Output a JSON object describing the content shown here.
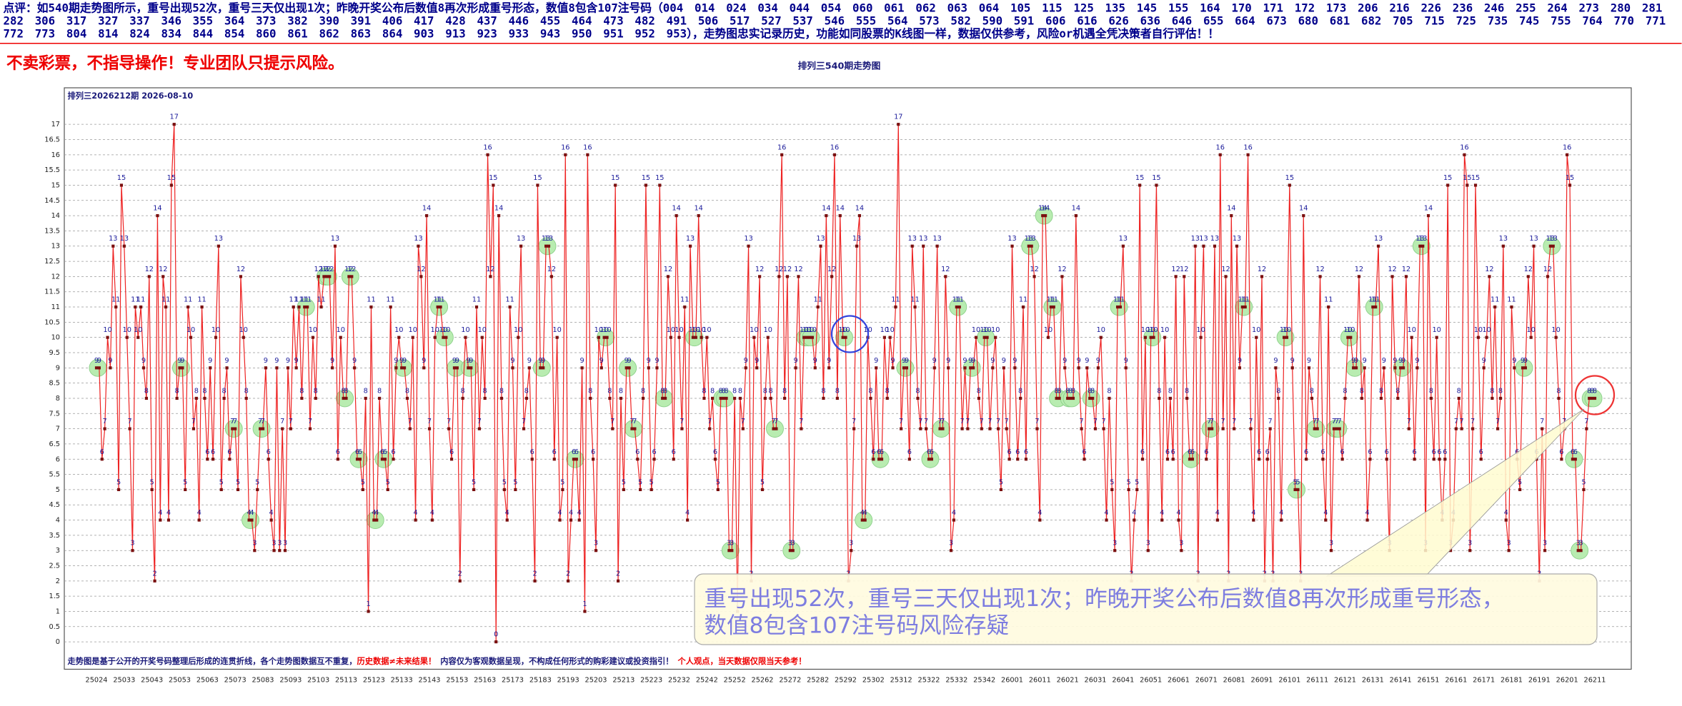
{
  "header": {
    "comment": "点评：如540期走势图所示，重号出现52次，重号三天仅出现1次；昨晚开奖公布后数值8再次形成重号形态，数值8包含107注号码（004　014　024　034　044　054　060　061　062　063　064　105　115　125　135　145　155　164　170　171　172　173　206　216　226　236　246　255　264　273　280　281　282　306　317　327　337　346　355　364　373　382　390　391　406　417　428　437　446　455　464　473　482　491　506　517　527　537　546　555　564　573　582　590　591　606　616　626　636　646　655　664　673　680　681　682　705　715　725　735　745　755　764　770　771　772　773　804　814　824　834　844　854　860　861　862　863　864　903　913　923　933　943　950　951　952　953），走势图忠实记录历史，功能如同股票的K线图一样，数据仅供参考，风险or机遇全凭决策者自行评估！！",
    "warning": "不卖彩票，不指导操作！专业团队只提示风险。"
  },
  "chart_data": {
    "type": "line",
    "title": "排列三540期走势图",
    "subtitle": "排列三2026212期  2026-08-10",
    "annotation": [
      "重号出现52次，重号三天仅出现1次；昨晚开奖公布后数值8再次形成重号形态，",
      "数值8包含107注号码风险存疑"
    ],
    "note": [
      "走势图是基于公开的开奖号码整理后形成的连贯折线，各个走势图数据互不重复，",
      "历史数据≠未来结果！",
      "内容仅为客观数据呈现，不构成任何形式的购彩建议或投资指引！",
      "个人观点，当天数据仅限当天参考！"
    ],
    "line_color": "#ee2222",
    "marker_color": "#7a1010",
    "repeat_color": "#b8ecb0",
    "label_color": "#1a1a9a",
    "grid": true,
    "ylim": [
      -0.9,
      18.2
    ],
    "yticks": [
      0,
      0.5,
      1,
      1.5,
      2,
      2.5,
      3,
      3.5,
      4,
      4.5,
      5,
      5.5,
      6,
      6.5,
      7,
      7.5,
      8,
      8.5,
      9,
      9.5,
      10,
      10.5,
      11,
      11.5,
      12,
      12.5,
      13,
      13.5,
      14,
      14.5,
      15,
      15.5,
      16,
      16.5,
      17
    ],
    "categories": [
      "25024",
      null,
      null,
      null,
      null,
      null,
      null,
      null,
      null,
      null,
      "25033",
      null,
      null,
      null,
      null,
      null,
      null,
      null,
      null,
      null,
      "25043",
      null,
      null,
      null,
      null,
      null,
      null,
      null,
      null,
      null,
      "25053",
      null,
      null,
      null,
      null,
      null,
      null,
      null,
      null,
      null,
      "25063",
      null,
      null,
      null,
      null,
      null,
      null,
      null,
      null,
      null,
      "25073",
      null,
      null,
      null,
      null,
      null,
      null,
      null,
      null,
      null,
      "25083",
      null,
      null,
      null,
      null,
      null,
      null,
      null,
      null,
      null,
      "25093",
      null,
      null,
      null,
      null,
      null,
      null,
      null,
      null,
      null,
      "25103",
      null,
      null,
      null,
      null,
      null,
      null,
      null,
      null,
      null,
      "25113",
      null,
      null,
      null,
      null,
      null,
      null,
      null,
      null,
      null,
      "25123",
      null,
      null,
      null,
      null,
      null,
      null,
      null,
      null,
      null,
      "25133",
      null,
      null,
      null,
      null,
      null,
      null,
      null,
      null,
      null,
      "25143",
      null,
      null,
      null,
      null,
      null,
      null,
      null,
      null,
      null,
      "25153",
      null,
      null,
      null,
      null,
      null,
      null,
      null,
      null,
      null,
      "25163",
      null,
      null,
      null,
      null,
      null,
      null,
      null,
      null,
      null,
      "25173",
      null,
      null,
      null,
      null,
      null,
      null,
      null,
      null,
      null,
      "25183",
      null,
      null,
      null,
      null,
      null,
      null,
      null,
      null,
      null,
      "25193",
      null,
      null,
      null,
      null,
      null,
      null,
      null,
      null,
      null,
      "25203",
      null,
      null,
      null,
      null,
      null,
      null,
      null,
      null,
      null,
      "25213",
      null,
      null,
      null,
      null,
      null,
      null,
      null,
      null,
      null,
      "25223",
      null,
      null,
      null,
      null,
      null,
      null,
      null,
      null,
      null,
      "25232",
      null,
      null,
      null,
      null,
      null,
      null,
      null,
      null,
      null,
      "25242",
      null,
      null,
      null,
      null,
      null,
      null,
      null,
      null,
      null,
      "25252",
      null,
      null,
      null,
      null,
      null,
      null,
      null,
      null,
      null,
      "25262",
      null,
      null,
      null,
      null,
      null,
      null,
      null,
      null,
      null,
      "25272",
      null,
      null,
      null,
      null,
      null,
      null,
      null,
      null,
      null,
      "25282",
      null,
      null,
      null,
      null,
      null,
      null,
      null,
      null,
      null,
      "25292",
      null,
      null,
      null,
      null,
      null,
      null,
      null,
      null,
      null,
      "25302",
      null,
      null,
      null,
      null,
      null,
      null,
      null,
      null,
      null,
      "25312",
      null,
      null,
      null,
      null,
      null,
      null,
      null,
      null,
      null,
      "25322",
      null,
      null,
      null,
      null,
      null,
      null,
      null,
      null,
      null,
      "25332",
      null,
      null,
      null,
      null,
      null,
      null,
      null,
      null,
      null,
      "25342",
      null,
      null,
      null,
      null,
      null,
      null,
      null,
      null,
      null,
      "26001",
      null,
      null,
      null,
      null,
      null,
      null,
      null,
      null,
      null,
      "26011",
      null,
      null,
      null,
      null,
      null,
      null,
      null,
      null,
      null,
      "26021",
      null,
      null,
      null,
      null,
      null,
      null,
      null,
      null,
      null,
      "26031",
      null,
      null,
      null,
      null,
      null,
      null,
      null,
      null,
      null,
      "26041",
      null,
      null,
      null,
      null,
      null,
      null,
      null,
      null,
      null,
      "26051",
      null,
      null,
      null,
      null,
      null,
      null,
      null,
      null,
      null,
      "26061",
      null,
      null,
      null,
      null,
      null,
      null,
      null,
      null,
      null,
      "26071",
      null,
      null,
      null,
      null,
      null,
      null,
      null,
      null,
      null,
      "26081",
      null,
      null,
      null,
      null,
      null,
      null,
      null,
      null,
      null,
      "26091",
      null,
      null,
      null,
      null,
      null,
      null,
      null,
      null,
      null,
      "26101",
      null,
      null,
      null,
      null,
      null,
      null,
      null,
      null,
      null,
      "26111",
      null,
      null,
      null,
      null,
      null,
      null,
      null,
      null,
      null,
      "26121",
      null,
      null,
      null,
      null,
      null,
      null,
      null,
      null,
      null,
      "26131",
      null,
      null,
      null,
      null,
      null,
      null,
      null,
      null,
      null,
      "26141",
      null,
      null,
      null,
      null,
      null,
      null,
      null,
      null,
      null,
      "26151",
      null,
      null,
      null,
      null,
      null,
      null,
      null,
      null,
      null,
      "26161",
      null,
      null,
      null,
      null,
      null,
      null,
      null,
      null,
      null,
      "26171",
      null,
      null,
      null,
      null,
      null,
      null,
      null,
      null,
      null,
      "26181",
      null,
      null,
      null,
      null,
      null,
      null,
      null,
      null,
      null,
      "26191",
      null,
      null,
      null,
      null,
      null,
      null,
      null,
      null,
      null,
      "26201",
      null,
      null,
      null,
      null,
      null,
      null,
      null,
      null,
      null,
      "26211"
    ],
    "values": [
      9,
      9,
      6,
      7,
      10,
      9,
      13,
      11,
      5,
      15,
      13,
      10,
      7,
      3,
      11,
      10,
      11,
      9,
      8,
      12,
      5,
      2,
      14,
      4,
      12,
      11,
      4,
      15,
      17,
      8,
      9,
      9,
      5,
      11,
      10,
      7,
      8,
      4,
      11,
      8,
      6,
      9,
      6,
      10,
      13,
      5,
      8,
      9,
      6,
      7,
      7,
      5,
      12,
      10,
      8,
      4,
      4,
      3,
      5,
      7,
      7,
      9,
      6,
      4,
      3,
      9,
      3,
      7,
      3,
      9,
      7,
      11,
      9,
      11,
      8,
      11,
      11,
      7,
      10,
      8,
      12,
      11,
      12,
      12,
      12,
      9,
      13,
      6,
      10,
      8,
      8,
      12,
      12,
      9,
      6,
      6,
      5,
      8,
      1,
      11,
      4,
      4,
      8,
      6,
      6,
      5,
      11,
      6,
      9,
      10,
      9,
      9,
      8,
      7,
      10,
      4,
      13,
      12,
      9,
      14,
      7,
      4,
      10,
      11,
      11,
      10,
      10,
      7,
      6,
      9,
      9,
      2,
      8,
      10,
      9,
      9,
      5,
      11,
      7,
      10,
      8,
      16,
      12,
      15,
      0,
      14,
      8,
      5,
      4,
      11,
      9,
      5,
      10,
      13,
      7,
      8,
      9,
      6,
      2,
      15,
      9,
      9,
      13,
      13,
      12,
      6,
      10,
      4,
      5,
      16,
      2,
      4,
      6,
      6,
      4,
      9,
      1,
      16,
      8,
      6,
      3,
      10,
      9,
      10,
      10,
      8,
      7,
      15,
      2,
      8,
      5,
      9,
      9,
      7,
      7,
      6,
      5,
      8,
      15,
      9,
      5,
      6,
      9,
      15,
      8,
      8,
      12,
      10,
      6,
      14,
      10,
      7,
      11,
      4,
      13,
      10,
      10,
      14,
      10,
      8,
      10,
      7,
      8,
      6,
      5,
      8,
      8,
      8,
      3,
      3,
      8,
      1,
      8,
      7,
      9,
      13,
      2,
      10,
      9,
      12,
      5,
      8,
      10,
      8,
      7,
      7,
      12,
      16,
      8,
      12,
      3,
      3,
      9,
      12,
      7,
      10,
      10,
      10,
      10,
      9,
      11,
      13,
      8,
      14,
      9,
      12,
      16,
      8,
      14,
      10,
      10,
      2,
      3,
      7,
      13,
      14,
      4,
      4,
      10,
      8,
      6,
      9,
      6,
      6,
      10,
      8,
      10,
      9,
      11,
      17,
      7,
      9,
      9,
      6,
      13,
      11,
      8,
      7,
      13,
      7,
      6,
      6,
      9,
      13,
      7,
      7,
      12,
      9,
      3,
      4,
      11,
      11,
      7,
      9,
      7,
      9,
      9,
      10,
      8,
      7,
      10,
      10,
      7,
      9,
      10,
      7,
      5,
      9,
      7,
      6,
      13,
      9,
      6,
      8,
      11,
      6,
      13,
      13,
      12,
      7,
      4,
      14,
      14,
      10,
      11,
      11,
      8,
      8,
      12,
      9,
      8,
      8,
      8,
      14,
      9,
      7,
      6,
      9,
      8,
      8,
      7,
      9,
      10,
      7,
      4,
      8,
      5,
      3,
      11,
      11,
      13,
      9,
      5,
      2,
      4,
      5,
      15,
      6,
      10,
      3,
      10,
      10,
      15,
      8,
      4,
      10,
      6,
      8,
      6,
      12,
      4,
      3,
      12,
      8,
      6,
      6,
      13,
      2,
      10,
      13,
      6,
      7,
      7,
      13,
      4,
      16,
      7,
      12,
      2,
      14,
      7,
      13,
      9,
      11,
      11,
      16,
      7,
      4,
      10,
      6,
      12,
      2,
      6,
      7,
      2,
      9,
      8,
      4,
      10,
      10,
      15,
      9,
      5,
      5,
      2,
      14,
      6,
      9,
      8,
      7,
      7,
      12,
      6,
      4,
      11,
      3,
      7,
      7,
      7,
      6,
      8,
      10,
      10,
      9,
      9,
      12,
      8,
      9,
      4,
      6,
      11,
      11,
      13,
      8,
      9,
      6,
      3,
      12,
      9,
      8,
      9,
      9,
      12,
      7,
      10,
      6,
      9,
      13,
      13,
      3,
      14,
      8,
      6,
      10,
      6,
      4,
      6,
      15,
      3,
      4,
      7,
      8,
      7,
      16,
      15,
      3,
      7,
      15,
      10,
      6,
      9,
      10,
      12,
      8,
      11,
      7,
      8,
      13,
      4,
      3,
      11,
      9,
      6,
      5,
      9,
      9,
      12,
      10,
      13,
      6,
      2,
      7,
      3,
      12,
      13,
      13,
      10,
      8,
      6,
      7,
      16,
      15,
      6,
      6,
      3,
      3,
      5,
      7,
      8,
      8,
      8
    ]
  }
}
